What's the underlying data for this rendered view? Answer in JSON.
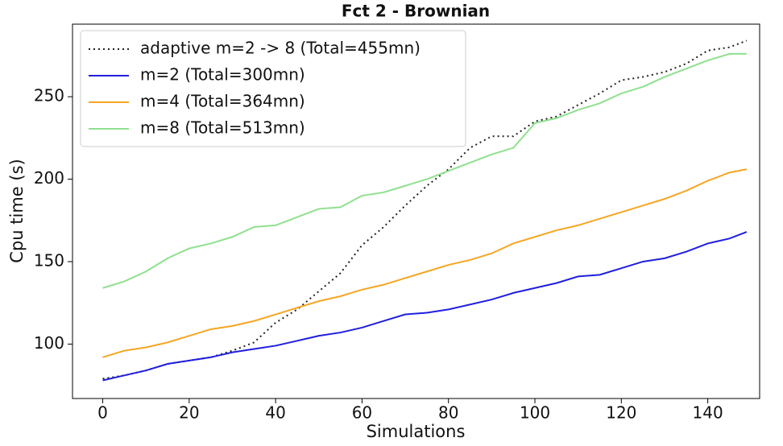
{
  "chart_data": {
    "type": "line",
    "title": "Fct 2 - Brownian",
    "xlabel": "Simulations",
    "ylabel": "Cpu time (s)",
    "x": [
      0,
      5,
      10,
      15,
      20,
      25,
      30,
      35,
      40,
      45,
      50,
      55,
      60,
      65,
      70,
      75,
      80,
      85,
      90,
      95,
      100,
      105,
      110,
      115,
      120,
      125,
      130,
      135,
      140,
      145,
      149
    ],
    "series": [
      {
        "name": "adaptive m=2 -> 8 (Total=455mn)",
        "color": "#222222",
        "linestyle": "dotted",
        "values": [
          79,
          81,
          84,
          88,
          90,
          92,
          96,
          101,
          113,
          121,
          132,
          143,
          160,
          171,
          184,
          196,
          206,
          219,
          226,
          226,
          235,
          238,
          245,
          252,
          260,
          262,
          265,
          270,
          278,
          280,
          284
        ]
      },
      {
        "name": "m=2 (Total=300mn)",
        "color": "#1f1fe0",
        "linestyle": "solid",
        "values": [
          78,
          81,
          84,
          88,
          90,
          92,
          95,
          97,
          99,
          102,
          105,
          107,
          110,
          114,
          118,
          119,
          121,
          124,
          127,
          131,
          134,
          137,
          141,
          142,
          146,
          150,
          152,
          156,
          161,
          164,
          168
        ]
      },
      {
        "name": "m=4 (Total=364mn)",
        "color": "#f5a623",
        "linestyle": "solid",
        "values": [
          92,
          96,
          98,
          101,
          105,
          109,
          111,
          114,
          118,
          122,
          126,
          129,
          133,
          136,
          140,
          144,
          148,
          151,
          155,
          161,
          165,
          169,
          172,
          176,
          180,
          184,
          188,
          193,
          199,
          204,
          206
        ]
      },
      {
        "name": "m=8 (Total=513mn)",
        "color": "#8fe08f",
        "linestyle": "solid",
        "values": [
          134,
          138,
          144,
          152,
          158,
          161,
          165,
          171,
          172,
          177,
          182,
          183,
          190,
          192,
          196,
          200,
          205,
          210,
          215,
          219,
          234,
          237,
          242,
          246,
          252,
          256,
          262,
          267,
          272,
          276,
          276
        ]
      }
    ],
    "xlim": [
      -7,
      152
    ],
    "ylim": [
      67,
      294
    ],
    "xticks": [
      0,
      20,
      40,
      60,
      80,
      100,
      120,
      140
    ],
    "yticks": [
      100,
      150,
      200,
      250
    ],
    "grid": false,
    "legend": "upper left"
  }
}
